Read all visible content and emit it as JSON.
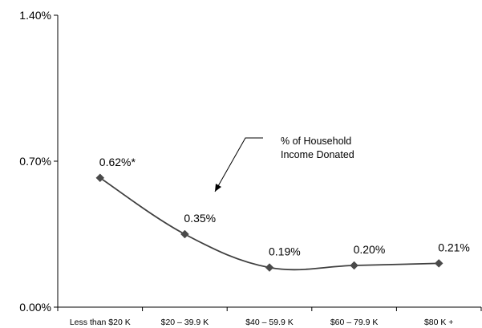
{
  "chart_data": {
    "type": "line",
    "categories": [
      "Less than $20 K",
      "$20 – 39.9 K",
      "$40 – 59.9 K",
      "$60 – 79.9 K",
      "$80 K +"
    ],
    "series": [
      {
        "name": "% of Household Income Donated",
        "values": [
          0.62,
          0.35,
          0.19,
          0.2,
          0.21
        ],
        "color": "#3f3f3f"
      }
    ],
    "data_labels": [
      "0.62%*",
      "0.35%",
      "0.19%",
      "0.20%",
      "0.21%"
    ],
    "y_ticks": [
      "0.00%",
      "0.70%",
      "1.40%"
    ],
    "ylim": [
      0,
      1.4
    ],
    "smooth": true,
    "grid": false,
    "annotation": {
      "lines": [
        "% of Household",
        "Income Donated"
      ]
    },
    "marker": "diamond"
  }
}
